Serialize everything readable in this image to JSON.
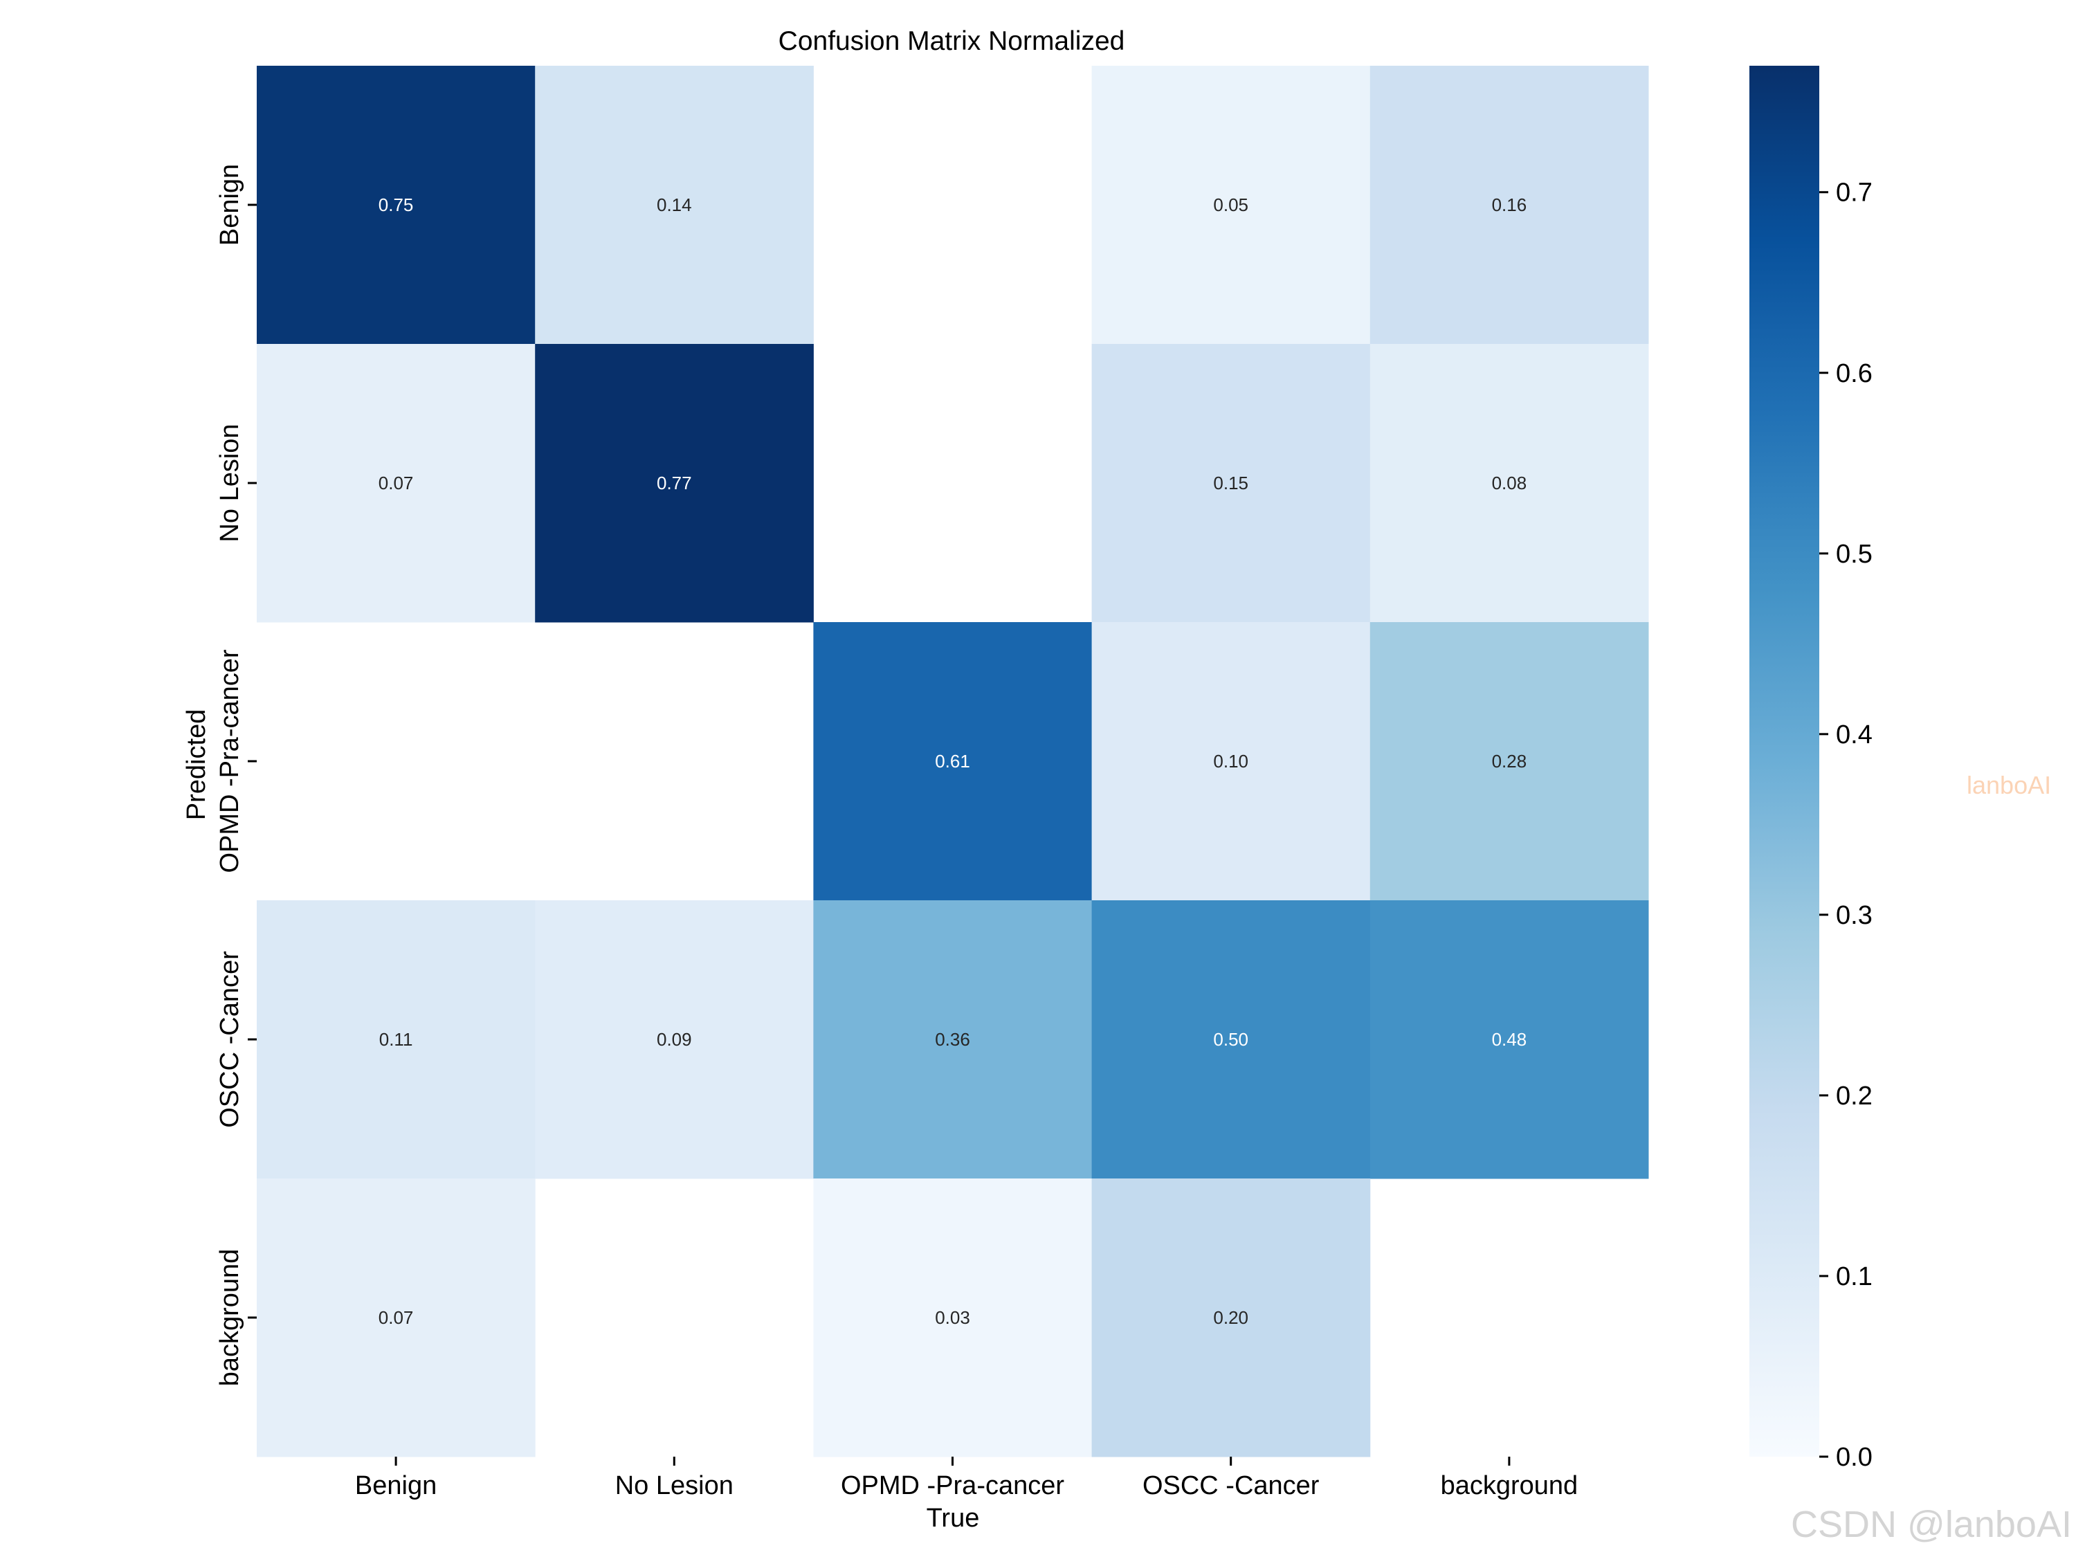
{
  "chart_data": {
    "type": "heatmap",
    "title": "Confusion Matrix Normalized",
    "xlabel": "True",
    "ylabel": "Predicted",
    "categories": [
      "Benign",
      "No Lesion",
      "OPMD -Pra-cancer",
      "OSCC -Cancer",
      "background"
    ],
    "matrix": [
      [
        0.75,
        0.14,
        null,
        0.05,
        0.16
      ],
      [
        0.07,
        0.77,
        null,
        0.15,
        0.08
      ],
      [
        null,
        null,
        0.61,
        0.1,
        0.28
      ],
      [
        0.11,
        0.09,
        0.36,
        0.5,
        0.48
      ],
      [
        0.07,
        null,
        0.03,
        0.2,
        null
      ]
    ],
    "value_labels": [
      [
        "0.75",
        "0.14",
        "",
        "0.05",
        "0.16"
      ],
      [
        "0.07",
        "0.77",
        "",
        "0.15",
        "0.08"
      ],
      [
        "",
        "",
        "0.61",
        "0.10",
        "0.28"
      ],
      [
        "0.11",
        "0.09",
        "0.36",
        "0.50",
        "0.48"
      ],
      [
        "0.07",
        "",
        "0.03",
        "0.20",
        ""
      ]
    ],
    "colormap": "Blues",
    "colorbar": {
      "range": [
        0.0,
        0.77
      ],
      "ticks": [
        0.0,
        0.1,
        0.2,
        0.3,
        0.4,
        0.5,
        0.6,
        0.7
      ],
      "tick_labels": [
        "0.0",
        "0.1",
        "0.2",
        "0.3",
        "0.4",
        "0.5",
        "0.6",
        "0.7"
      ]
    }
  },
  "watermarks": {
    "side": "lanboAI",
    "bottom": "CSDN @lanboAI"
  }
}
